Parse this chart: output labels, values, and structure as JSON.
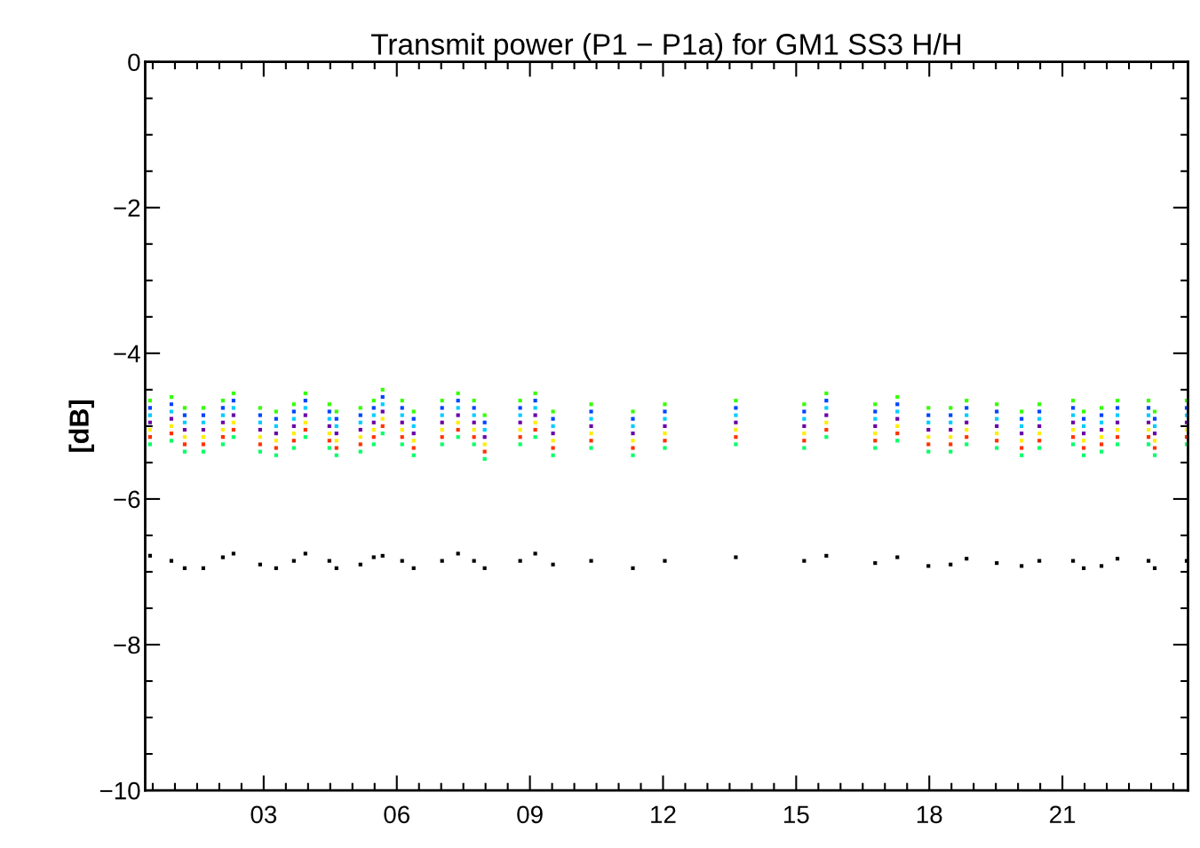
{
  "chart_data": {
    "type": "scatter",
    "title": "Transmit power (P1 − P1a) for GM1 SS3 H/H",
    "ylabel": "[dB]",
    "x": [
      0.44,
      0.92,
      1.22,
      1.64,
      2.08,
      2.32,
      2.92,
      3.28,
      3.68,
      3.94,
      4.48,
      4.64,
      5.18,
      5.48,
      5.68,
      6.12,
      6.38,
      7.02,
      7.38,
      7.74,
      7.98,
      8.78,
      9.12,
      9.52,
      10.38,
      11.32,
      12.04,
      13.64,
      15.18,
      15.68,
      16.78,
      17.28,
      17.98,
      18.48,
      18.84,
      19.52,
      20.08,
      20.48,
      21.24,
      21.48,
      21.88,
      22.24,
      22.94,
      23.08,
      23.8
    ],
    "xlim": [
      0.33,
      23.83
    ],
    "xticks": [
      {
        "value": 3,
        "label": "03"
      },
      {
        "value": 6,
        "label": "06"
      },
      {
        "value": 9,
        "label": "09"
      },
      {
        "value": 12,
        "label": "12"
      },
      {
        "value": 15,
        "label": "15"
      },
      {
        "value": 18,
        "label": "18"
      },
      {
        "value": 21,
        "label": "21"
      }
    ],
    "ylim": [
      -10,
      0
    ],
    "yticks": [
      {
        "value": -10,
        "label": "−10"
      },
      {
        "value": -8,
        "label": "−8"
      },
      {
        "value": -6,
        "label": "−6"
      },
      {
        "value": -4,
        "label": "−4"
      },
      {
        "value": -2,
        "label": "−2"
      },
      0
    ],
    "grid": false,
    "marker": "square",
    "series": [
      {
        "color": "#33ff00",
        "values": [
          -4.65,
          -4.6,
          -4.75,
          -4.75,
          -4.65,
          -4.55,
          -4.75,
          -4.8,
          -4.7,
          -4.55,
          -4.7,
          -4.8,
          -4.75,
          -4.65,
          -4.5,
          -4.65,
          -4.8,
          -4.65,
          -4.55,
          -4.65,
          -4.85,
          -4.65,
          -4.55,
          -4.8,
          -4.7,
          -4.8,
          -4.7,
          -4.65,
          -4.7,
          -4.55,
          -4.7,
          -4.6,
          -4.75,
          -4.75,
          -4.65,
          -4.7,
          -4.8,
          -4.7,
          -4.65,
          -4.8,
          -4.75,
          -4.65,
          -4.65,
          -4.8,
          -4.65
        ]
      },
      {
        "color": "#0044ff",
        "values": [
          -4.75,
          -4.7,
          -4.85,
          -4.85,
          -4.75,
          -4.65,
          -4.85,
          -4.9,
          -4.8,
          -4.65,
          -4.8,
          -4.9,
          -4.85,
          -4.75,
          -4.6,
          -4.75,
          -4.9,
          -4.75,
          -4.65,
          -4.75,
          -4.95,
          -4.75,
          -4.65,
          -4.9,
          -4.8,
          -4.9,
          -4.8,
          -4.75,
          -4.8,
          -4.65,
          -4.8,
          -4.7,
          -4.85,
          -4.85,
          -4.75,
          -4.8,
          -4.9,
          -4.8,
          -4.75,
          -4.9,
          -4.85,
          -4.75,
          -4.75,
          -4.9,
          -4.75
        ]
      },
      {
        "color": "#00ccff",
        "values": [
          -4.85,
          -4.8,
          -4.95,
          -4.95,
          -4.85,
          -4.75,
          -4.95,
          -5.0,
          -4.9,
          -4.75,
          -4.9,
          -5.0,
          -4.95,
          -4.85,
          -4.7,
          -4.85,
          -5.0,
          -4.85,
          -4.75,
          -4.85,
          -5.05,
          -4.85,
          -4.75,
          -5.0,
          -4.9,
          -5.0,
          -4.9,
          -4.85,
          -4.9,
          -4.75,
          -4.9,
          -4.8,
          -4.95,
          -4.95,
          -4.85,
          -4.9,
          -5.0,
          -4.9,
          -4.85,
          -5.0,
          -4.95,
          -4.85,
          -4.85,
          -5.0,
          -4.85
        ]
      },
      {
        "color": "#6a00a8",
        "values": [
          -4.95,
          -4.9,
          -5.05,
          -5.05,
          -4.95,
          -4.85,
          -5.05,
          -5.1,
          -5.0,
          -4.85,
          -5.0,
          -5.1,
          -5.05,
          -4.95,
          -4.8,
          -4.95,
          -5.1,
          -4.95,
          -4.85,
          -4.95,
          -5.15,
          -4.95,
          -4.85,
          -5.1,
          -5.0,
          -5.1,
          -5.0,
          -4.95,
          -5.0,
          -4.85,
          -5.0,
          -4.9,
          -5.05,
          -5.05,
          -4.95,
          -5.0,
          -5.1,
          -5.0,
          -4.95,
          -5.1,
          -5.05,
          -4.95,
          -4.95,
          -5.1,
          -4.95
        ]
      },
      {
        "color": "#ffee00",
        "values": [
          -5.05,
          -5.0,
          -5.15,
          -5.15,
          -5.05,
          -4.95,
          -5.15,
          -5.2,
          -5.1,
          -4.95,
          -5.1,
          -5.2,
          -5.15,
          -5.05,
          -4.9,
          -5.05,
          -5.2,
          -5.05,
          -4.95,
          -5.05,
          -5.25,
          -5.05,
          -4.95,
          -5.2,
          -5.1,
          -5.2,
          -5.1,
          -5.05,
          -5.1,
          -4.95,
          -5.1,
          -5.0,
          -5.15,
          -5.15,
          -5.05,
          -5.1,
          -5.2,
          -5.1,
          -5.05,
          -5.2,
          -5.15,
          -5.05,
          -5.05,
          -5.2,
          -5.05
        ]
      },
      {
        "color": "#ff3300",
        "values": [
          -5.15,
          -5.1,
          -5.25,
          -5.25,
          -5.15,
          -5.05,
          -5.25,
          -5.3,
          -5.2,
          -5.05,
          -5.2,
          -5.3,
          -5.25,
          -5.15,
          -5.0,
          -5.15,
          -5.3,
          -5.15,
          -5.05,
          -5.15,
          -5.35,
          -5.15,
          -5.05,
          -5.3,
          -5.2,
          -5.3,
          -5.2,
          -5.15,
          -5.2,
          -5.05,
          -5.2,
          -5.1,
          -5.25,
          -5.25,
          -5.15,
          -5.2,
          -5.3,
          -5.2,
          -5.15,
          -5.3,
          -5.25,
          -5.15,
          -5.15,
          -5.3,
          -5.15
        ]
      },
      {
        "color": "#00ff66",
        "values": [
          -5.25,
          -5.2,
          -5.35,
          -5.35,
          -5.25,
          -5.15,
          -5.35,
          -5.4,
          -5.3,
          -5.15,
          -5.3,
          -5.4,
          -5.35,
          -5.25,
          -5.1,
          -5.25,
          -5.4,
          -5.25,
          -5.15,
          -5.25,
          -5.45,
          -5.25,
          -5.15,
          -5.4,
          -5.3,
          -5.4,
          -5.3,
          -5.25,
          -5.3,
          -5.15,
          -5.3,
          -5.2,
          -5.35,
          -5.35,
          -5.25,
          -5.3,
          -5.4,
          -5.3,
          -5.25,
          -5.4,
          -5.35,
          -5.25,
          -5.25,
          -5.4,
          -5.25
        ]
      },
      {
        "color": "#000000",
        "values": [
          -6.78,
          -6.85,
          -6.95,
          -6.95,
          -6.8,
          -6.75,
          -6.9,
          -6.95,
          -6.85,
          -6.75,
          -6.85,
          -6.95,
          -6.9,
          -6.8,
          -6.78,
          -6.85,
          -6.95,
          -6.85,
          -6.75,
          -6.85,
          -6.95,
          -6.85,
          -6.75,
          -6.9,
          -6.85,
          -6.95,
          -6.85,
          -6.8,
          -6.85,
          -6.78,
          -6.88,
          -6.8,
          -6.92,
          -6.9,
          -6.82,
          -6.88,
          -6.92,
          -6.85,
          -6.85,
          -6.95,
          -6.92,
          -6.82,
          -6.85,
          -6.95,
          -6.85
        ]
      }
    ]
  }
}
